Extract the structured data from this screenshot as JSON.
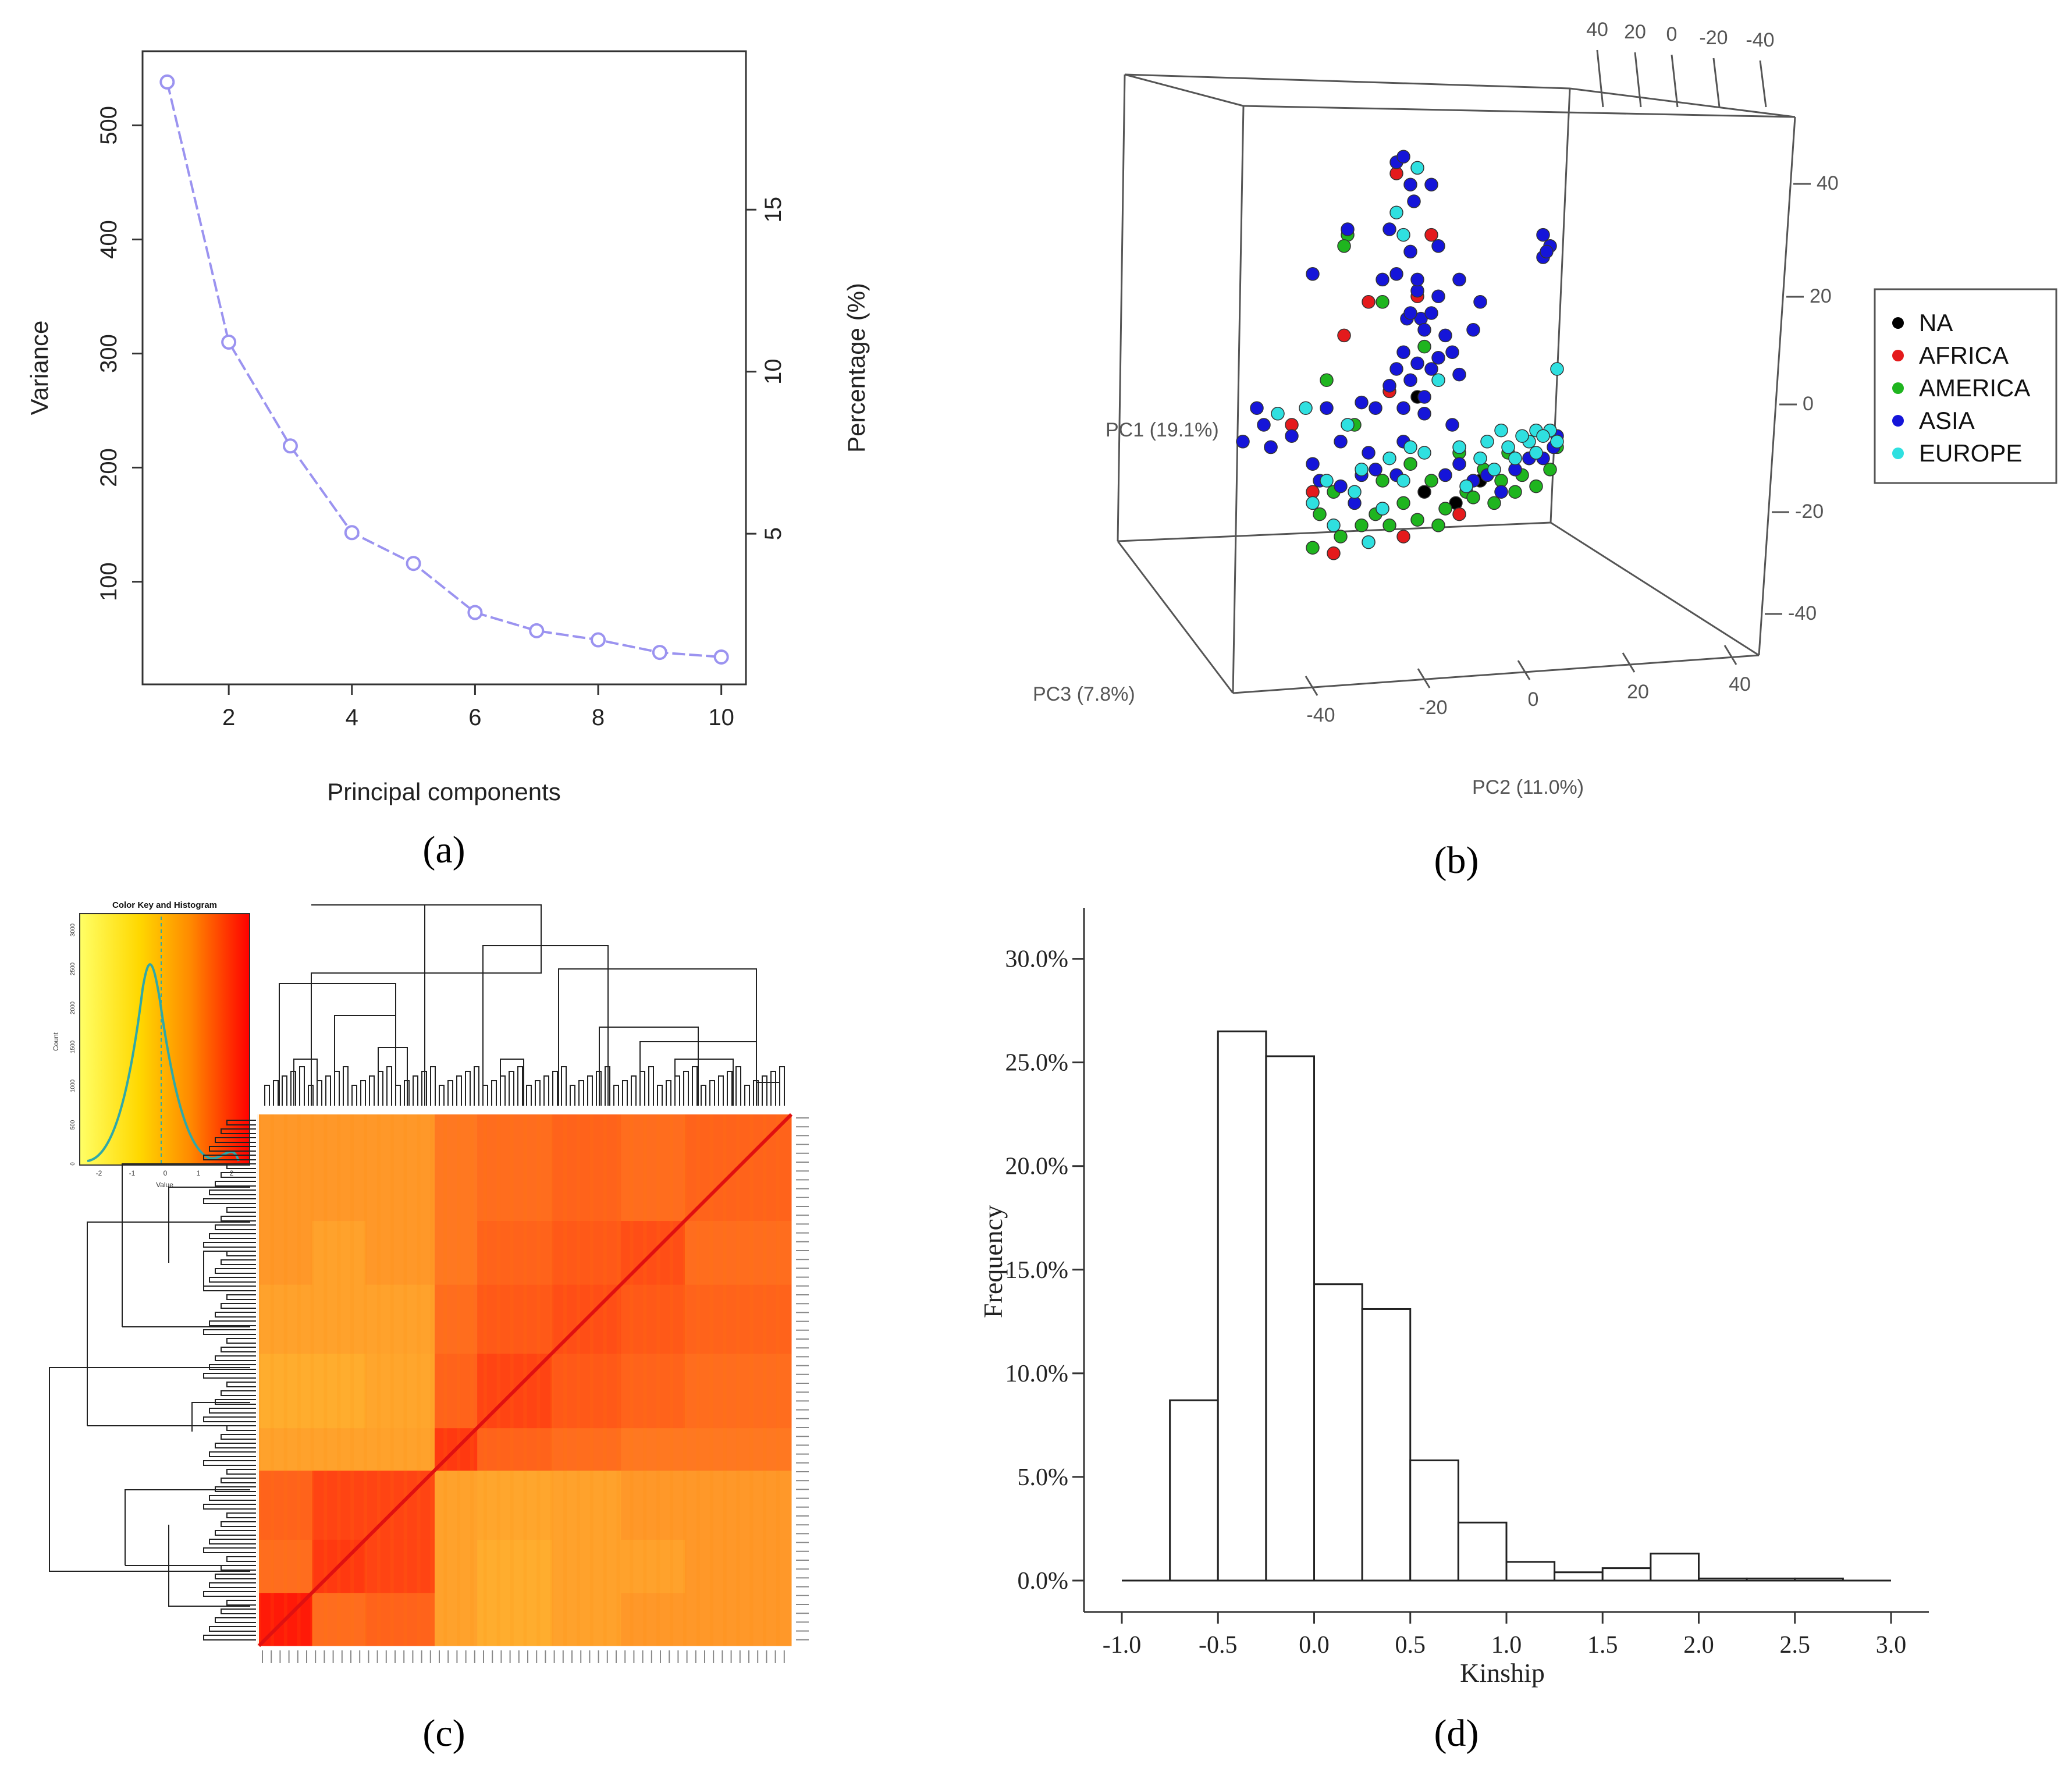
{
  "panels": {
    "a": {
      "label": "(a)"
    },
    "b": {
      "label": "(b)"
    },
    "c": {
      "label": "(c)"
    },
    "d": {
      "label": "(d)"
    }
  },
  "colors": {
    "scree_line": "#9b93f0",
    "axis": "#333333",
    "NA": "#000000",
    "AFRICA": "#e41a1c",
    "AMERICA": "#1fb51f",
    "ASIA": "#1515d9",
    "EUROPE": "#2fe0e0"
  },
  "chart_data": [
    {
      "type": "line",
      "panel": "a",
      "title": "",
      "xlabel": "Principal components",
      "ylabel": "Variance",
      "ylabel_right": "Percentage (%)",
      "x": [
        1,
        2,
        3,
        4,
        5,
        6,
        7,
        8,
        9,
        10
      ],
      "values": [
        538,
        310,
        219,
        143,
        116,
        73,
        57,
        49,
        38,
        34
      ],
      "xlim": [
        0.6,
        10.4
      ],
      "ylim": [
        10,
        565
      ],
      "xticks": [
        "2",
        "4",
        "6",
        "8",
        "10"
      ],
      "yticks": [
        "100",
        "200",
        "300",
        "400",
        "500"
      ],
      "yticks_right": [
        "5",
        "10",
        "15"
      ],
      "percent_per_variance": 0.0352
    },
    {
      "type": "scatter",
      "panel": "b",
      "title": "",
      "axis_labels": {
        "pc1": "PC1 (19.1%)",
        "pc2": "PC2 (11.0%)",
        "pc3": "PC3 (7.8%)"
      },
      "top_ticks": [
        "40",
        "20",
        "0",
        "-20",
        "-40"
      ],
      "right_ticks": [
        "40",
        "20",
        "0",
        "-20",
        "-40"
      ],
      "bottom_ticks": [
        "-40",
        "-20",
        "0",
        "20",
        "40"
      ],
      "legend": [
        "NA",
        "AFRICA",
        "AMERICA",
        "ASIA",
        "EUROPE"
      ],
      "legend_position": "right",
      "groups": [
        {
          "name": "NA",
          "points": [
            [
              -12,
              -12
            ],
            [
              -14,
              5
            ],
            [
              4,
              -10
            ],
            [
              -3,
              -14
            ]
          ]
        },
        {
          "name": "AFRICA",
          "points": [
            [
              -20,
              45
            ],
            [
              -28,
              22
            ],
            [
              -35,
              16
            ],
            [
              -10,
              34
            ],
            [
              -50,
              0
            ],
            [
              -18,
              -20
            ],
            [
              -44,
              -12
            ],
            [
              -14,
              23
            ],
            [
              -22,
              6
            ],
            [
              -38,
              -23
            ],
            [
              -2,
              -16
            ],
            [
              -56,
              -4
            ]
          ]
        },
        {
          "name": "AMERICA",
          "points": [
            [
              -40,
              8
            ],
            [
              -34,
              34
            ],
            [
              -24,
              22
            ],
            [
              -32,
              0
            ],
            [
              -26,
              -16
            ],
            [
              -18,
              -14
            ],
            [
              -10,
              -10
            ],
            [
              0,
              -12
            ],
            [
              10,
              -10
            ],
            [
              18,
              -6
            ],
            [
              24,
              -8
            ],
            [
              -44,
              -22
            ],
            [
              -36,
              -20
            ],
            [
              -30,
              -18
            ],
            [
              -22,
              -18
            ],
            [
              -14,
              -17
            ],
            [
              -6,
              -15
            ],
            [
              2,
              -13
            ],
            [
              8,
              -14
            ],
            [
              14,
              -12
            ],
            [
              20,
              -11
            ],
            [
              -2,
              -5
            ],
            [
              -16,
              -7
            ],
            [
              -42,
              -16
            ],
            [
              -28,
              -21
            ],
            [
              5,
              -8
            ],
            [
              12,
              -5
            ],
            [
              -8,
              -18
            ],
            [
              -24,
              -10
            ],
            [
              16,
              -9
            ],
            [
              -35,
              32
            ],
            [
              26,
              -4
            ],
            [
              -12,
              14
            ],
            [
              -38,
              -12
            ]
          ]
        },
        {
          "name": "ASIA",
          "points": [
            [
              -34,
              35
            ],
            [
              -20,
              47
            ],
            [
              -18,
              48
            ],
            [
              -15,
              40
            ],
            [
              -10,
              43
            ],
            [
              -16,
              43
            ],
            [
              -44,
              27
            ],
            [
              -24,
              26
            ],
            [
              -20,
              27
            ],
            [
              -14,
              24
            ],
            [
              -17,
              19
            ],
            [
              -13,
              19
            ],
            [
              -8,
              23
            ],
            [
              -16,
              20
            ],
            [
              -10,
              20
            ],
            [
              -12,
              17
            ],
            [
              -6,
              16
            ],
            [
              -18,
              13
            ],
            [
              -14,
              11
            ],
            [
              -10,
              10
            ],
            [
              -8,
              12
            ],
            [
              -4,
              13
            ],
            [
              -20,
              10
            ],
            [
              -22,
              7
            ],
            [
              -16,
              8
            ],
            [
              -12,
              5
            ],
            [
              -18,
              3
            ],
            [
              -2,
              9
            ],
            [
              -26,
              3
            ],
            [
              2,
              17
            ],
            [
              -40,
              3
            ],
            [
              -36,
              -3
            ],
            [
              -28,
              -5
            ],
            [
              -60,
              3
            ],
            [
              -64,
              -3
            ],
            [
              -56,
              -4
            ],
            [
              -58,
              0
            ],
            [
              -50,
              -2
            ],
            [
              -44,
              -7
            ],
            [
              -42,
              -10
            ],
            [
              -36,
              -11
            ],
            [
              -30,
              -9
            ],
            [
              -24,
              -15
            ],
            [
              -20,
              -9
            ],
            [
              -6,
              -9
            ],
            [
              -2,
              -7
            ],
            [
              2,
              -10
            ],
            [
              6,
              -9
            ],
            [
              10,
              -12
            ],
            [
              14,
              -8
            ],
            [
              18,
              -6
            ],
            [
              22,
              -6
            ],
            [
              25,
              -4
            ],
            [
              26,
              -2
            ],
            [
              22,
              30
            ],
            [
              24,
              32
            ],
            [
              22,
              34
            ],
            [
              23,
              31
            ],
            [
              4,
              22
            ],
            [
              -32,
              -14
            ],
            [
              -26,
              -8
            ],
            [
              -4,
              0
            ],
            [
              -16,
              31
            ],
            [
              -14,
              26
            ],
            [
              -22,
              35
            ],
            [
              -30,
              4
            ],
            [
              -2,
              26
            ],
            [
              -8,
              32
            ],
            [
              -12,
              2
            ],
            [
              -18,
              -3
            ]
          ]
        },
        {
          "name": "EUROPE",
          "points": [
            [
              -14,
              46
            ],
            [
              -20,
              38
            ],
            [
              -18,
              34
            ],
            [
              -54,
              2
            ],
            [
              -46,
              3
            ],
            [
              -34,
              0
            ],
            [
              -44,
              -14
            ],
            [
              -38,
              -18
            ],
            [
              -40,
              -10
            ],
            [
              -32,
              -12
            ],
            [
              -22,
              -6
            ],
            [
              -30,
              -8
            ],
            [
              -12,
              -5
            ],
            [
              -2,
              -4
            ],
            [
              6,
              -3
            ],
            [
              12,
              -4
            ],
            [
              18,
              -3
            ],
            [
              20,
              -1
            ],
            [
              24,
              -1
            ],
            [
              26,
              -3
            ],
            [
              16,
              -2
            ],
            [
              14,
              -6
            ],
            [
              8,
              -8
            ],
            [
              -8,
              8
            ],
            [
              4,
              -6
            ],
            [
              -24,
              -15
            ],
            [
              -18,
              -10
            ],
            [
              26,
              10
            ],
            [
              -28,
              -21
            ],
            [
              0,
              -11
            ],
            [
              20,
              -5
            ],
            [
              -16,
              -4
            ],
            [
              10,
              -1
            ],
            [
              22,
              -2
            ]
          ]
        }
      ]
    },
    {
      "type": "heatmap",
      "panel": "c",
      "title": "Color Key and Histogram",
      "key_xlabel": "Value",
      "key_ylabel": "Count",
      "key_xticks": [
        "-2",
        "-1",
        "0",
        "1",
        "2"
      ],
      "key_yticks": [
        "0",
        "500",
        "1000",
        "1500",
        "2000",
        "2500",
        "3000"
      ],
      "color_scale": [
        "#ffff66",
        "#ff0000"
      ],
      "blocks": [
        0.1,
        0.1,
        0.13,
        0.08,
        0.14,
        0.13,
        0.12,
        0.2
      ],
      "block_values": [
        [
          0.95,
          0.55,
          0.6,
          0.3,
          0.25,
          0.3,
          0.35,
          0.35
        ],
        [
          0.55,
          0.8,
          0.75,
          0.3,
          0.25,
          0.3,
          0.3,
          0.35
        ],
        [
          0.6,
          0.75,
          0.75,
          0.3,
          0.28,
          0.3,
          0.35,
          0.35
        ],
        [
          0.3,
          0.3,
          0.3,
          0.8,
          0.6,
          0.55,
          0.5,
          0.5
        ],
        [
          0.25,
          0.25,
          0.28,
          0.6,
          0.75,
          0.65,
          0.6,
          0.55
        ],
        [
          0.3,
          0.3,
          0.3,
          0.55,
          0.65,
          0.7,
          0.65,
          0.6
        ],
        [
          0.35,
          0.3,
          0.35,
          0.5,
          0.6,
          0.65,
          0.7,
          0.55
        ],
        [
          0.35,
          0.35,
          0.35,
          0.5,
          0.55,
          0.6,
          0.55,
          0.6
        ]
      ]
    },
    {
      "type": "bar",
      "panel": "d",
      "title": "",
      "xlabel": "Kinship",
      "ylabel": "Frequency",
      "bin_edges": [
        -1.0,
        -0.75,
        -0.5,
        -0.25,
        0.0,
        0.25,
        0.5,
        0.75,
        1.0,
        1.25,
        1.5,
        1.75,
        2.0,
        2.25,
        2.5,
        2.75,
        3.0
      ],
      "values": [
        0.0,
        8.7,
        26.5,
        25.3,
        14.3,
        13.1,
        5.8,
        2.8,
        0.9,
        0.4,
        0.6,
        1.3,
        0.1,
        0.1,
        0.1,
        0.0
      ],
      "xlim": [
        -1.0,
        3.0
      ],
      "ylim": [
        0,
        31
      ],
      "xticks": [
        "-1.0",
        "-0.5",
        "0.0",
        "0.5",
        "1.0",
        "1.5",
        "2.0",
        "2.5",
        "3.0"
      ],
      "yticks": [
        "0.0%",
        "5.0%",
        "10.0%",
        "15.0%",
        "20.0%",
        "25.0%",
        "30.0%"
      ]
    }
  ]
}
